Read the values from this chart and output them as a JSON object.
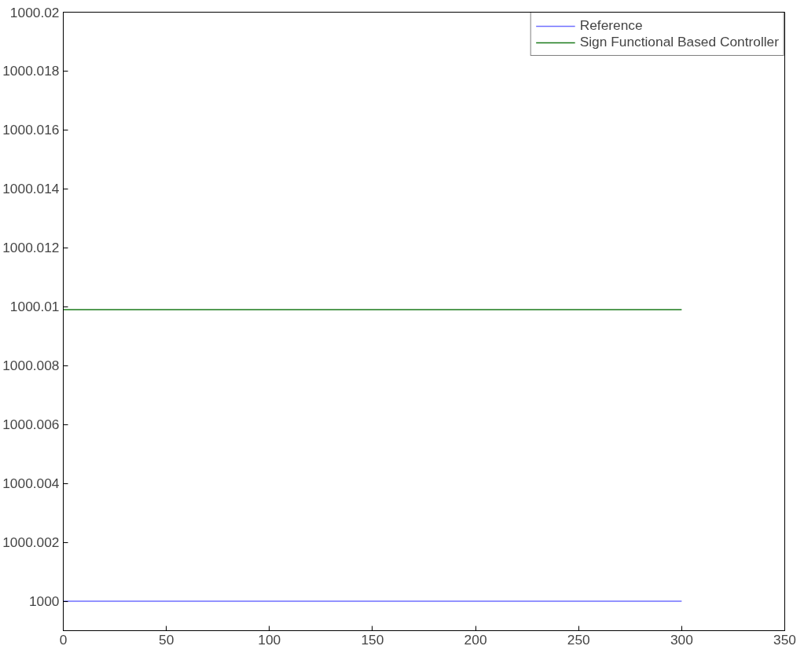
{
  "chart_data": {
    "type": "line",
    "x": [
      0,
      300
    ],
    "series": [
      {
        "name": "Reference",
        "color": "#6f6fff",
        "values": [
          1000,
          1000
        ]
      },
      {
        "name": "Sign Functional Based Controller",
        "color": "#1a7a1a",
        "values": [
          1000.0099,
          1000.0099
        ]
      }
    ],
    "xlim": [
      0,
      350
    ],
    "xticks": [
      0,
      50,
      100,
      150,
      200,
      250,
      300,
      350
    ],
    "ylim": [
      999.999,
      1000.02
    ],
    "yticks": [
      {
        "value": 1000,
        "label": "1000"
      },
      {
        "value": 1000.002,
        "label": "1000.002"
      },
      {
        "value": 1000.004,
        "label": "1000.004"
      },
      {
        "value": 1000.006,
        "label": "1000.006"
      },
      {
        "value": 1000.008,
        "label": "1000.008"
      },
      {
        "value": 1000.01,
        "label": "1000.01"
      },
      {
        "value": 1000.012,
        "label": "1000.012"
      },
      {
        "value": 1000.014,
        "label": "1000.014"
      },
      {
        "value": 1000.016,
        "label": "1000.016"
      },
      {
        "value": 1000.018,
        "label": "1000.018"
      },
      {
        "value": 1000.02,
        "label": "1000.02"
      }
    ],
    "grid": false,
    "legend": "top right",
    "marker": "none",
    "line_style": "solid"
  }
}
